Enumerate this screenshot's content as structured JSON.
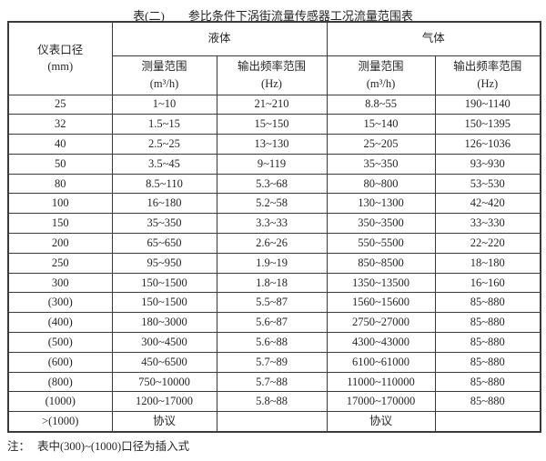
{
  "title": {
    "prefix": "表(二)",
    "text": "参比条件下涡街流量传感器工况流量范围表"
  },
  "table": {
    "diameter_header": {
      "label": "仪表口径",
      "unit": "(mm)"
    },
    "groups": [
      {
        "label": "液体"
      },
      {
        "label": "气体"
      }
    ],
    "subheaders": [
      {
        "label": "测量范围",
        "unit": "(m³/h)"
      },
      {
        "label": "输出频率范围",
        "unit": "(Hz)"
      },
      {
        "label": "测量范围",
        "unit": "(m³/h)"
      },
      {
        "label": "输出频率范围",
        "unit": "(Hz)"
      }
    ],
    "rows": [
      [
        "25",
        "1~10",
        "21~210",
        "8.8~55",
        "190~1140"
      ],
      [
        "32",
        "1.5~15",
        "15~150",
        "15~140",
        "150~1395"
      ],
      [
        "40",
        "2.5~25",
        "13~130",
        "25~205",
        "126~1036"
      ],
      [
        "50",
        "3.5~45",
        "9~119",
        "35~350",
        "93~930"
      ],
      [
        "80",
        "8.5~110",
        "5.3~68",
        "80~800",
        "53~530"
      ],
      [
        "100",
        "16~180",
        "5.2~58",
        "130~1300",
        "42~420"
      ],
      [
        "150",
        "35~350",
        "3.3~33",
        "350~3500",
        "33~330"
      ],
      [
        "200",
        "65~650",
        "2.6~26",
        "550~5500",
        "22~220"
      ],
      [
        "250",
        "95~950",
        "1.9~19",
        "850~8500",
        "18~180"
      ],
      [
        "300",
        "150~1500",
        "1.8~18",
        "1350~13500",
        "16~160"
      ],
      [
        "(300)",
        "150~1500",
        "5.5~87",
        "1560~15600",
        "85~880"
      ],
      [
        "(400)",
        "180~3000",
        "5.6~87",
        "2750~27000",
        "85~880"
      ],
      [
        "(500)",
        "300~4500",
        "5.6~88",
        "4300~43000",
        "85~880"
      ],
      [
        "(600)",
        "450~6500",
        "5.7~89",
        "6100~61000",
        "85~880"
      ],
      [
        "(800)",
        "750~10000",
        "5.7~88",
        "11000~110000",
        "85~880"
      ],
      [
        "(1000)",
        "1200~17000",
        "5.8~88",
        "17000~170000",
        "85~880"
      ],
      [
        ">(1000)",
        "协议",
        "",
        "协议",
        ""
      ]
    ]
  },
  "footnote": {
    "label": "注：",
    "text": "表中(300)~(1000)口径为插入式"
  },
  "colors": {
    "text": "#262626",
    "border": "#3b3b3b",
    "background": "#ffffff"
  }
}
